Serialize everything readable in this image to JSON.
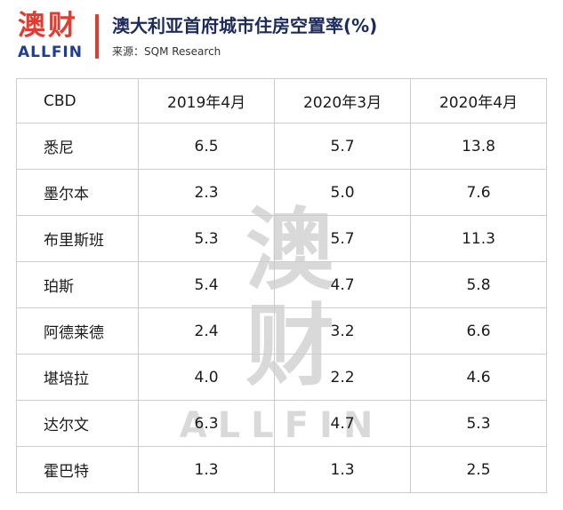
{
  "header": {
    "logo_cn": "澳财",
    "logo_en": "ALLFIN",
    "title": "澳大利亚首府城市住房空置率(%)",
    "source": "来源：SQM Research"
  },
  "watermark": {
    "cn": "澳财",
    "en": "ALLFIN"
  },
  "colors": {
    "brand_red": "#e23b30",
    "brand_blue": "#1d3d96",
    "title_navy": "#1c2b5a",
    "table_border": "#cccccc",
    "watermark_gray": "#d9d9d9"
  },
  "chart_data": {
    "type": "table",
    "title": "澳大利亚首府城市住房空置率(%)",
    "source": "SQM Research",
    "columns": [
      "CBD",
      "2019年4月",
      "2020年3月",
      "2020年4月"
    ],
    "rows": [
      [
        "悉尼",
        "6.5",
        "5.7",
        "13.8"
      ],
      [
        "墨尔本",
        "2.3",
        "5.0",
        "7.6"
      ],
      [
        "布里斯班",
        "5.3",
        "5.7",
        "11.3"
      ],
      [
        "珀斯",
        "5.4",
        "4.7",
        "5.8"
      ],
      [
        "阿德莱德",
        "2.4",
        "3.2",
        "6.6"
      ],
      [
        "堪培拉",
        "4.0",
        "2.2",
        "4.6"
      ],
      [
        "达尔文",
        "6.3",
        "4.7",
        "5.3"
      ],
      [
        "霍巴特",
        "1.3",
        "1.3",
        "2.5"
      ]
    ]
  }
}
